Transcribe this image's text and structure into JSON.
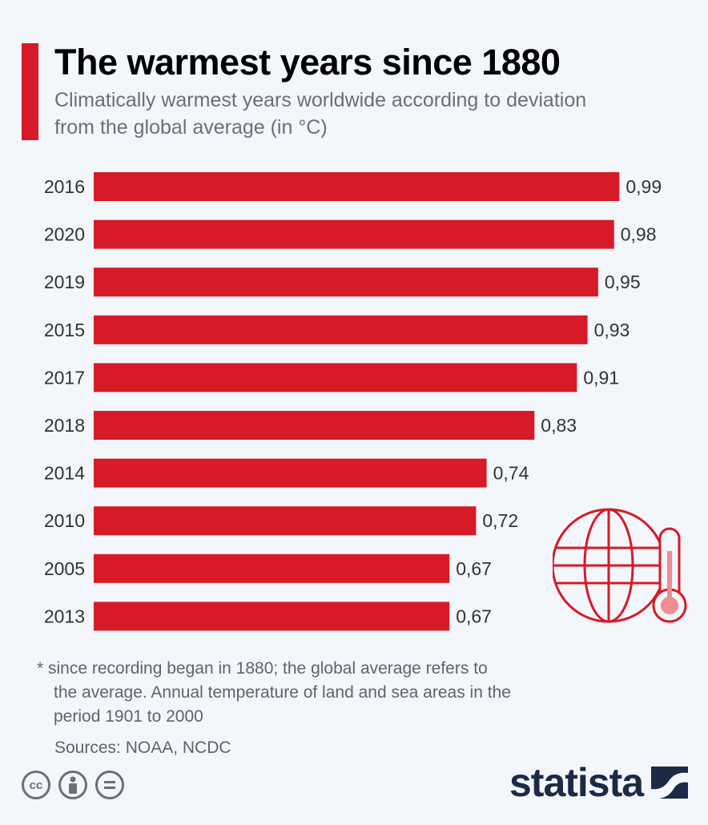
{
  "header": {
    "title": "The warmest years since 1880",
    "subtitle": "Climatically warmest years worldwide according to deviation from the global average (in °C)"
  },
  "chart_data": {
    "type": "bar",
    "orientation": "horizontal",
    "title": "The warmest years since 1880",
    "subtitle": "Climatically warmest years worldwide according to deviation from the global average (in °C)",
    "xlabel": "",
    "ylabel": "",
    "categories": [
      "2016",
      "2020",
      "2019",
      "2015",
      "2017",
      "2018",
      "2014",
      "2010",
      "2005",
      "2013"
    ],
    "values": [
      0.99,
      0.98,
      0.95,
      0.93,
      0.91,
      0.83,
      0.74,
      0.72,
      0.67,
      0.67
    ],
    "value_labels": [
      "0,99",
      "0,98",
      "0,95",
      "0,93",
      "0,91",
      "0,83",
      "0,74",
      "0,72",
      "0,67",
      "0,67"
    ],
    "bar_color": "#d71a27",
    "grid": false,
    "legend": "none"
  },
  "footnote": {
    "line1": "* since recording began in 1880; the global average refers to",
    "line2": "the average. Annual temperature of land and sea areas in the",
    "line3": "period 1901 to 2000"
  },
  "sources": "Sources: NOAA, NCDC",
  "license_icons": [
    "cc-icon",
    "attribution-icon",
    "no-derivatives-icon"
  ],
  "license": {
    "cc_text": "cc"
  },
  "brand": {
    "name": "statista"
  },
  "colors": {
    "accent": "#d71a27",
    "background": "#f3f6fb",
    "brand": "#1b2a45"
  }
}
